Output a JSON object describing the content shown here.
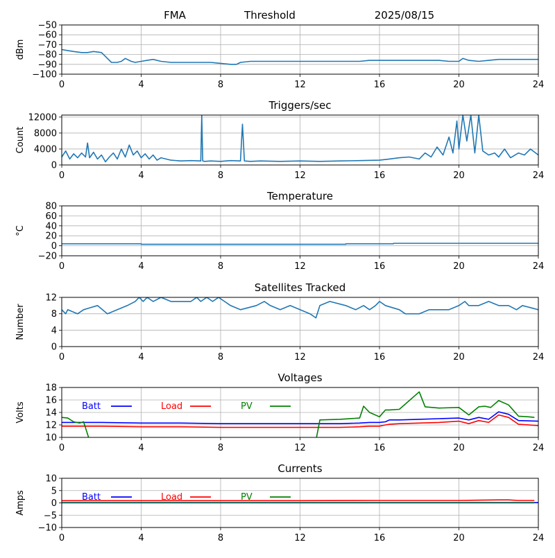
{
  "header": {
    "left": "FMA",
    "middle": "Threshold",
    "right": "2025/08/15"
  },
  "colors": {
    "default_line": "#1f77b4",
    "batt": "#0000ff",
    "load": "#ff0000",
    "pv": "#008000",
    "grid": "#b0b0b0"
  },
  "chart_data": [
    {
      "id": "threshold",
      "type": "line",
      "title": "",
      "xlabel": "",
      "ylabel": "dBm",
      "xlim": [
        0,
        24
      ],
      "ylim": [
        -100,
        -50
      ],
      "xticks": [
        0,
        4,
        8,
        12,
        16,
        20,
        24
      ],
      "yticks": [
        -100,
        -90,
        -80,
        -70,
        -60,
        -50
      ],
      "grid": true,
      "series": [
        {
          "color": "#1f77b4",
          "x": [
            0,
            0.3,
            0.6,
            1.0,
            1.3,
            1.6,
            2.0,
            2.2,
            2.5,
            2.8,
            3.0,
            3.2,
            3.5,
            3.7,
            4.0,
            4.3,
            4.6,
            5.0,
            5.5,
            6.0,
            6.5,
            7.0,
            7.5,
            8.0,
            8.5,
            8.8,
            9.0,
            9.5,
            10.0,
            11.0,
            12.0,
            13.0,
            14.0,
            15.0,
            15.5,
            16.0,
            17.0,
            18.0,
            19.0,
            19.5,
            20.0,
            20.2,
            20.5,
            21.0,
            21.5,
            22.0,
            22.5,
            23.0,
            24.0
          ],
          "y": [
            -75,
            -76,
            -77,
            -78,
            -78,
            -77,
            -78,
            -82,
            -88,
            -88,
            -87,
            -84,
            -87,
            -88,
            -87,
            -86,
            -85,
            -87,
            -88,
            -88,
            -88,
            -88,
            -88,
            -89,
            -90,
            -90,
            -88,
            -87,
            -87,
            -87,
            -87,
            -87,
            -87,
            -87,
            -86,
            -86,
            -86,
            -86,
            -86,
            -87,
            -87,
            -84,
            -86,
            -87,
            -86,
            -85,
            -85,
            -85,
            -85
          ]
        }
      ]
    },
    {
      "id": "triggers",
      "type": "line",
      "title": "Triggers/sec",
      "xlabel": "",
      "ylabel": "Count",
      "xlim": [
        0,
        24
      ],
      "ylim": [
        0,
        12500
      ],
      "xticks": [
        0,
        4,
        8,
        12,
        16,
        20,
        24
      ],
      "yticks": [
        0,
        4000,
        8000,
        12000
      ],
      "grid": true,
      "series": [
        {
          "color": "#1f77b4",
          "x": [
            0,
            0.2,
            0.4,
            0.6,
            0.8,
            1.0,
            1.2,
            1.3,
            1.4,
            1.6,
            1.8,
            2.0,
            2.2,
            2.4,
            2.6,
            2.8,
            3.0,
            3.2,
            3.4,
            3.6,
            3.8,
            4.0,
            4.2,
            4.4,
            4.6,
            4.8,
            5.0,
            5.5,
            6.0,
            6.5,
            7.0,
            7.05,
            7.1,
            7.2,
            7.5,
            8.0,
            8.5,
            9.0,
            9.1,
            9.2,
            9.5,
            10.0,
            11.0,
            12.0,
            13.0,
            14.0,
            15.0,
            16.0,
            16.5,
            17.0,
            17.5,
            18.0,
            18.3,
            18.6,
            18.9,
            19.2,
            19.5,
            19.7,
            19.9,
            20.0,
            20.2,
            20.4,
            20.6,
            20.8,
            21.0,
            21.2,
            21.5,
            21.8,
            22.0,
            22.3,
            22.6,
            23.0,
            23.3,
            23.6,
            24.0
          ],
          "y": [
            2000,
            3500,
            1500,
            2800,
            1800,
            3000,
            2000,
            5500,
            1800,
            3200,
            1500,
            2500,
            800,
            2000,
            3000,
            1500,
            4000,
            2000,
            5000,
            2500,
            3500,
            1800,
            2800,
            1500,
            2500,
            1200,
            1800,
            1200,
            1000,
            1100,
            1000,
            12500,
            1000,
            900,
            1000,
            900,
            1100,
            1000,
            10200,
            1000,
            900,
            1000,
            900,
            1000,
            900,
            1000,
            1100,
            1200,
            1500,
            1800,
            2000,
            1500,
            3000,
            2000,
            4500,
            2500,
            7000,
            3000,
            11000,
            4000,
            12500,
            6000,
            12500,
            3000,
            12500,
            3500,
            2500,
            3000,
            2000,
            4000,
            1800,
            3000,
            2500,
            4000,
            2500
          ]
        }
      ]
    },
    {
      "id": "temperature",
      "type": "line",
      "title": "Temperature",
      "xlabel": "",
      "ylabel": "°C",
      "xlim": [
        0,
        24
      ],
      "ylim": [
        -20,
        80
      ],
      "xticks": [
        0,
        4,
        8,
        12,
        16,
        20,
        24
      ],
      "yticks": [
        -20,
        0,
        20,
        40,
        60,
        80
      ],
      "grid": true,
      "series": [
        {
          "color": "#1f77b4",
          "x": [
            0,
            4.0,
            4.01,
            14.3,
            14.31,
            16.7,
            16.71,
            24
          ],
          "y": [
            4,
            4,
            3,
            3,
            4,
            4,
            5,
            5
          ]
        }
      ]
    },
    {
      "id": "satellites",
      "type": "line",
      "title": "Satellites Tracked",
      "xlabel": "",
      "ylabel": "Number",
      "xlim": [
        0,
        24
      ],
      "ylim": [
        0,
        12
      ],
      "xticks": [
        0,
        4,
        8,
        12,
        16,
        20,
        24
      ],
      "yticks": [
        0,
        4,
        8,
        12
      ],
      "grid": true,
      "series": [
        {
          "color": "#1f77b4",
          "x": [
            0,
            0.2,
            0.3,
            0.8,
            1.1,
            1.8,
            2.3,
            2.8,
            3.3,
            3.7,
            3.9,
            4.1,
            4.3,
            4.6,
            5.0,
            5.5,
            6.0,
            6.5,
            6.8,
            7.0,
            7.3,
            7.6,
            7.9,
            8.2,
            8.5,
            9.0,
            9.8,
            10.2,
            10.5,
            11.0,
            11.5,
            12.0,
            12.5,
            12.8,
            13.0,
            13.5,
            14.3,
            14.8,
            15.2,
            15.5,
            15.8,
            16.0,
            16.3,
            17.0,
            17.3,
            18.0,
            18.5,
            19.0,
            19.5,
            20.0,
            20.3,
            20.5,
            21.0,
            21.5,
            22.0,
            22.5,
            22.9,
            23.2,
            24.0
          ],
          "y": [
            9,
            8,
            9,
            8,
            9,
            10,
            8,
            9,
            10,
            11,
            12,
            11,
            12,
            11,
            12,
            11,
            11,
            11,
            12,
            11,
            12,
            11,
            12,
            11,
            10,
            9,
            10,
            11,
            10,
            9,
            10,
            9,
            8,
            7,
            10,
            11,
            10,
            9,
            10,
            9,
            10,
            11,
            10,
            9,
            8,
            8,
            9,
            9,
            9,
            10,
            11,
            10,
            10,
            11,
            10,
            10,
            9,
            10,
            9
          ]
        }
      ]
    },
    {
      "id": "voltages",
      "type": "line",
      "title": "Voltages",
      "xlabel": "",
      "ylabel": "Volts",
      "xlim": [
        0,
        24
      ],
      "ylim": [
        10,
        18
      ],
      "xticks": [
        0,
        4,
        8,
        12,
        16,
        20,
        24
      ],
      "yticks": [
        10,
        12,
        14,
        16,
        18
      ],
      "grid": true,
      "legend": "top-left-inline",
      "series": [
        {
          "name": "Batt",
          "color": "#0000ff",
          "x": [
            0,
            0.5,
            1.0,
            2,
            4,
            6,
            8,
            10,
            12,
            14,
            15,
            15.5,
            16,
            16.3,
            16.5,
            17,
            18,
            19,
            20,
            20.5,
            21,
            21.5,
            22,
            22.5,
            23,
            24
          ],
          "y": [
            12.4,
            12.4,
            12.4,
            12.4,
            12.3,
            12.3,
            12.2,
            12.2,
            12.2,
            12.2,
            12.3,
            12.4,
            12.4,
            12.5,
            12.8,
            12.8,
            12.9,
            13.0,
            13.1,
            12.8,
            13.2,
            12.9,
            14.1,
            13.7,
            12.7,
            12.6
          ]
        },
        {
          "name": "Load",
          "color": "#ff0000",
          "x": [
            0,
            0.5,
            1.0,
            2,
            4,
            6,
            8,
            10,
            12,
            14,
            15,
            15.5,
            16,
            16.3,
            16.5,
            17,
            18,
            19,
            20,
            20.5,
            21,
            21.5,
            22,
            22.5,
            23,
            24
          ],
          "y": [
            11.8,
            11.8,
            11.8,
            11.8,
            11.7,
            11.7,
            11.6,
            11.6,
            11.6,
            11.6,
            11.7,
            11.8,
            11.8,
            12.0,
            12.1,
            12.2,
            12.3,
            12.4,
            12.6,
            12.2,
            12.7,
            12.4,
            13.6,
            13.2,
            12.1,
            11.9
          ]
        },
        {
          "name": "PV",
          "color": "#008000",
          "x": [
            0,
            0.3,
            0.6,
            0.9,
            1.1,
            1.4,
            12.8,
            13.0,
            14.0,
            15.0,
            15.2,
            15.5,
            16.0,
            16.3,
            16.5,
            17.0,
            18.0,
            18.3,
            19.0,
            20.0,
            20.5,
            21.0,
            21.3,
            21.6,
            22.0,
            22.5,
            23.0,
            23.5,
            23.8
          ],
          "y": [
            13.2,
            13.1,
            12.5,
            12.3,
            12.5,
            9.5,
            9.5,
            12.8,
            12.9,
            13.1,
            15.0,
            14.0,
            13.3,
            14.4,
            14.4,
            14.5,
            17.3,
            14.9,
            14.7,
            14.8,
            13.6,
            14.9,
            15.0,
            14.8,
            15.9,
            15.2,
            13.4,
            13.3,
            13.2
          ]
        }
      ]
    },
    {
      "id": "currents",
      "type": "line",
      "title": "Currents",
      "xlabel": "",
      "ylabel": "Amps",
      "xlim": [
        0,
        24
      ],
      "ylim": [
        -10,
        10
      ],
      "xticks": [
        0,
        4,
        8,
        12,
        16,
        20,
        24
      ],
      "yticks": [
        -10,
        -5,
        0,
        5,
        10
      ],
      "grid": true,
      "legend": "top-left-inline",
      "series": [
        {
          "name": "Batt",
          "color": "#0000ff",
          "x": [
            0,
            24
          ],
          "y": [
            0.1,
            0.1
          ]
        },
        {
          "name": "Load",
          "color": "#ff0000",
          "x": [
            0,
            4,
            8,
            12,
            16,
            20,
            21,
            22,
            22.5,
            23,
            23.8
          ],
          "y": [
            0.9,
            0.9,
            0.9,
            0.9,
            1.0,
            1.0,
            1.1,
            1.2,
            1.2,
            1.0,
            1.0
          ]
        },
        {
          "name": "PV",
          "color": "#008000",
          "x": [
            0,
            23.8
          ],
          "y": [
            0.0,
            0.0
          ]
        }
      ]
    }
  ]
}
